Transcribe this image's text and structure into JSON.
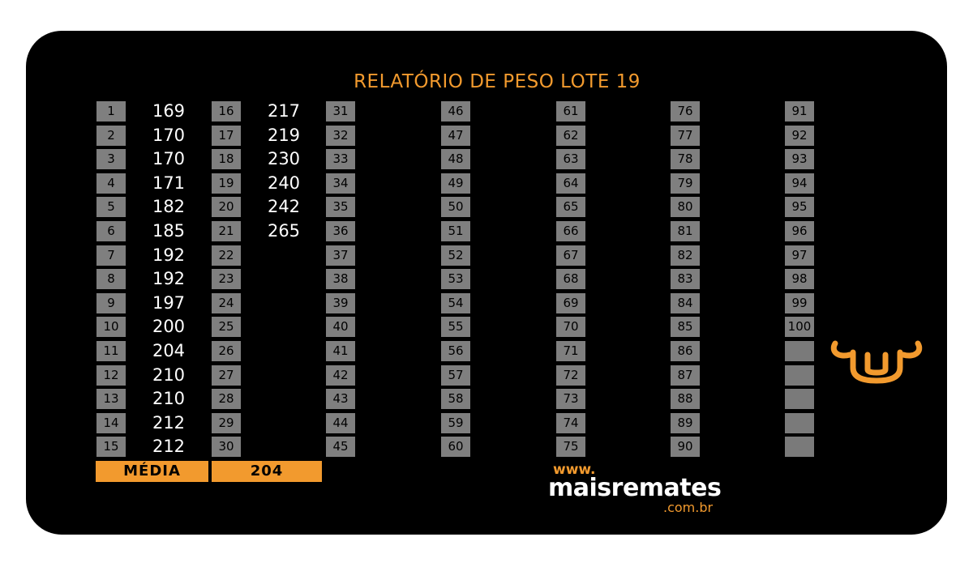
{
  "report": {
    "title": "RELATÓRIO DE PESO LOTE  19",
    "media_label": "MÉDIA",
    "media_value": "204"
  },
  "rows": [
    {
      "n": "1",
      "w": "169"
    },
    {
      "n": "2",
      "w": "170"
    },
    {
      "n": "3",
      "w": "170"
    },
    {
      "n": "4",
      "w": "171"
    },
    {
      "n": "5",
      "w": "182"
    },
    {
      "n": "6",
      "w": "185"
    },
    {
      "n": "7",
      "w": "192"
    },
    {
      "n": "8",
      "w": "192"
    },
    {
      "n": "9",
      "w": "197"
    },
    {
      "n": "10",
      "w": "200"
    },
    {
      "n": "11",
      "w": "204"
    },
    {
      "n": "12",
      "w": "210"
    },
    {
      "n": "13",
      "w": "210"
    },
    {
      "n": "14",
      "w": "212"
    },
    {
      "n": "15",
      "w": "212"
    },
    {
      "n": "16",
      "w": "217"
    },
    {
      "n": "17",
      "w": "219"
    },
    {
      "n": "18",
      "w": "230"
    },
    {
      "n": "19",
      "w": "240"
    },
    {
      "n": "20",
      "w": "242"
    },
    {
      "n": "21",
      "w": "265"
    },
    {
      "n": "22",
      "w": ""
    },
    {
      "n": "23",
      "w": ""
    },
    {
      "n": "24",
      "w": ""
    },
    {
      "n": "25",
      "w": ""
    },
    {
      "n": "26",
      "w": ""
    },
    {
      "n": "27",
      "w": ""
    },
    {
      "n": "28",
      "w": ""
    },
    {
      "n": "29",
      "w": ""
    },
    {
      "n": "30",
      "w": ""
    },
    {
      "n": "31",
      "w": ""
    },
    {
      "n": "32",
      "w": ""
    },
    {
      "n": "33",
      "w": ""
    },
    {
      "n": "34",
      "w": ""
    },
    {
      "n": "35",
      "w": ""
    },
    {
      "n": "36",
      "w": ""
    },
    {
      "n": "37",
      "w": ""
    },
    {
      "n": "38",
      "w": ""
    },
    {
      "n": "39",
      "w": ""
    },
    {
      "n": "40",
      "w": ""
    },
    {
      "n": "41",
      "w": ""
    },
    {
      "n": "42",
      "w": ""
    },
    {
      "n": "43",
      "w": ""
    },
    {
      "n": "44",
      "w": ""
    },
    {
      "n": "45",
      "w": ""
    },
    {
      "n": "46",
      "w": ""
    },
    {
      "n": "47",
      "w": ""
    },
    {
      "n": "48",
      "w": ""
    },
    {
      "n": "49",
      "w": ""
    },
    {
      "n": "50",
      "w": ""
    },
    {
      "n": "51",
      "w": ""
    },
    {
      "n": "52",
      "w": ""
    },
    {
      "n": "53",
      "w": ""
    },
    {
      "n": "54",
      "w": ""
    },
    {
      "n": "55",
      "w": ""
    },
    {
      "n": "56",
      "w": ""
    },
    {
      "n": "57",
      "w": ""
    },
    {
      "n": "58",
      "w": ""
    },
    {
      "n": "59",
      "w": ""
    },
    {
      "n": "60",
      "w": ""
    },
    {
      "n": "61",
      "w": ""
    },
    {
      "n": "62",
      "w": ""
    },
    {
      "n": "63",
      "w": ""
    },
    {
      "n": "64",
      "w": ""
    },
    {
      "n": "65",
      "w": ""
    },
    {
      "n": "66",
      "w": ""
    },
    {
      "n": "67",
      "w": ""
    },
    {
      "n": "68",
      "w": ""
    },
    {
      "n": "69",
      "w": ""
    },
    {
      "n": "70",
      "w": ""
    },
    {
      "n": "71",
      "w": ""
    },
    {
      "n": "72",
      "w": ""
    },
    {
      "n": "73",
      "w": ""
    },
    {
      "n": "74",
      "w": ""
    },
    {
      "n": "75",
      "w": ""
    },
    {
      "n": "76",
      "w": ""
    },
    {
      "n": "77",
      "w": ""
    },
    {
      "n": "78",
      "w": ""
    },
    {
      "n": "79",
      "w": ""
    },
    {
      "n": "80",
      "w": ""
    },
    {
      "n": "81",
      "w": ""
    },
    {
      "n": "82",
      "w": ""
    },
    {
      "n": "83",
      "w": ""
    },
    {
      "n": "84",
      "w": ""
    },
    {
      "n": "85",
      "w": ""
    },
    {
      "n": "86",
      "w": ""
    },
    {
      "n": "87",
      "w": ""
    },
    {
      "n": "88",
      "w": ""
    },
    {
      "n": "89",
      "w": ""
    },
    {
      "n": "90",
      "w": ""
    },
    {
      "n": "91",
      "w": ""
    },
    {
      "n": "92",
      "w": ""
    },
    {
      "n": "93",
      "w": ""
    },
    {
      "n": "94",
      "w": ""
    },
    {
      "n": "95",
      "w": ""
    },
    {
      "n": "96",
      "w": ""
    },
    {
      "n": "97",
      "w": ""
    },
    {
      "n": "98",
      "w": ""
    },
    {
      "n": "99",
      "w": ""
    },
    {
      "n": "100",
      "w": ""
    },
    {
      "n": "",
      "w": ""
    },
    {
      "n": "",
      "w": ""
    },
    {
      "n": "",
      "w": ""
    },
    {
      "n": "",
      "w": ""
    },
    {
      "n": "",
      "w": ""
    }
  ],
  "logo": {
    "www": "www.",
    "brand": "maisremates",
    "domain": ".com.br",
    "icon": "bull-head-icon"
  },
  "colors": {
    "background": "#000000",
    "accent": "#f29a2e",
    "cell": "#7f7f7f",
    "value_text": "#ffffff"
  }
}
